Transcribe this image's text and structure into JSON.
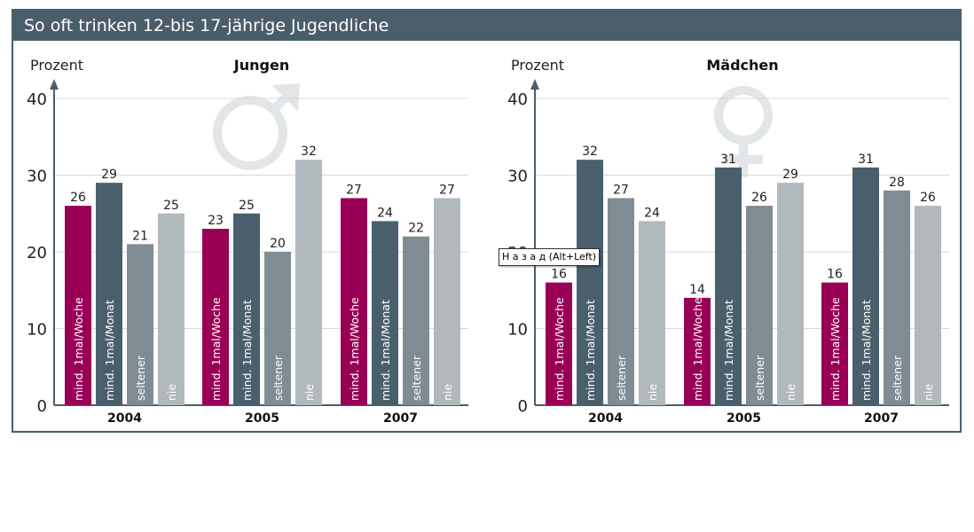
{
  "title": "So oft trinken 12-bis 17-jährige Jugendliche",
  "tooltip": "Н а з а д  (Alt+Left)",
  "colors": {
    "header": "#4a5d6b",
    "mind_1mal_woche": "#990055",
    "mind_1mal_monat": "#4a5f6c",
    "seltener": "#7f8c94",
    "nie": "#b2b9bd",
    "symbol": "#e2e6e8"
  },
  "chart_data": [
    {
      "type": "bar",
      "title": "Jungen",
      "ylabel": "Prozent",
      "ylim": [
        0,
        40
      ],
      "yticks": [
        0,
        10,
        20,
        30,
        40
      ],
      "symbol": "male-symbol",
      "categories": [
        "2004",
        "2005",
        "2007"
      ],
      "series": [
        {
          "name": "mind. 1mal/Woche",
          "values": [
            26,
            23,
            27
          ]
        },
        {
          "name": "mind. 1mal/Monat",
          "values": [
            29,
            25,
            24
          ]
        },
        {
          "name": "seltener",
          "values": [
            21,
            20,
            22
          ]
        },
        {
          "name": "nie",
          "values": [
            25,
            32,
            27
          ]
        }
      ]
    },
    {
      "type": "bar",
      "title": "Mädchen",
      "ylabel": "Prozent",
      "ylim": [
        0,
        40
      ],
      "yticks": [
        0,
        10,
        20,
        30,
        40
      ],
      "symbol": "female-symbol",
      "categories": [
        "2004",
        "2005",
        "2007"
      ],
      "series": [
        {
          "name": "mind. 1mal/Woche",
          "values": [
            16,
            14,
            16
          ]
        },
        {
          "name": "mind. 1mal/Monat",
          "values": [
            32,
            31,
            31
          ]
        },
        {
          "name": "seltener",
          "values": [
            27,
            26,
            28
          ]
        },
        {
          "name": "nie",
          "values": [
            24,
            29,
            26
          ]
        }
      ]
    }
  ]
}
